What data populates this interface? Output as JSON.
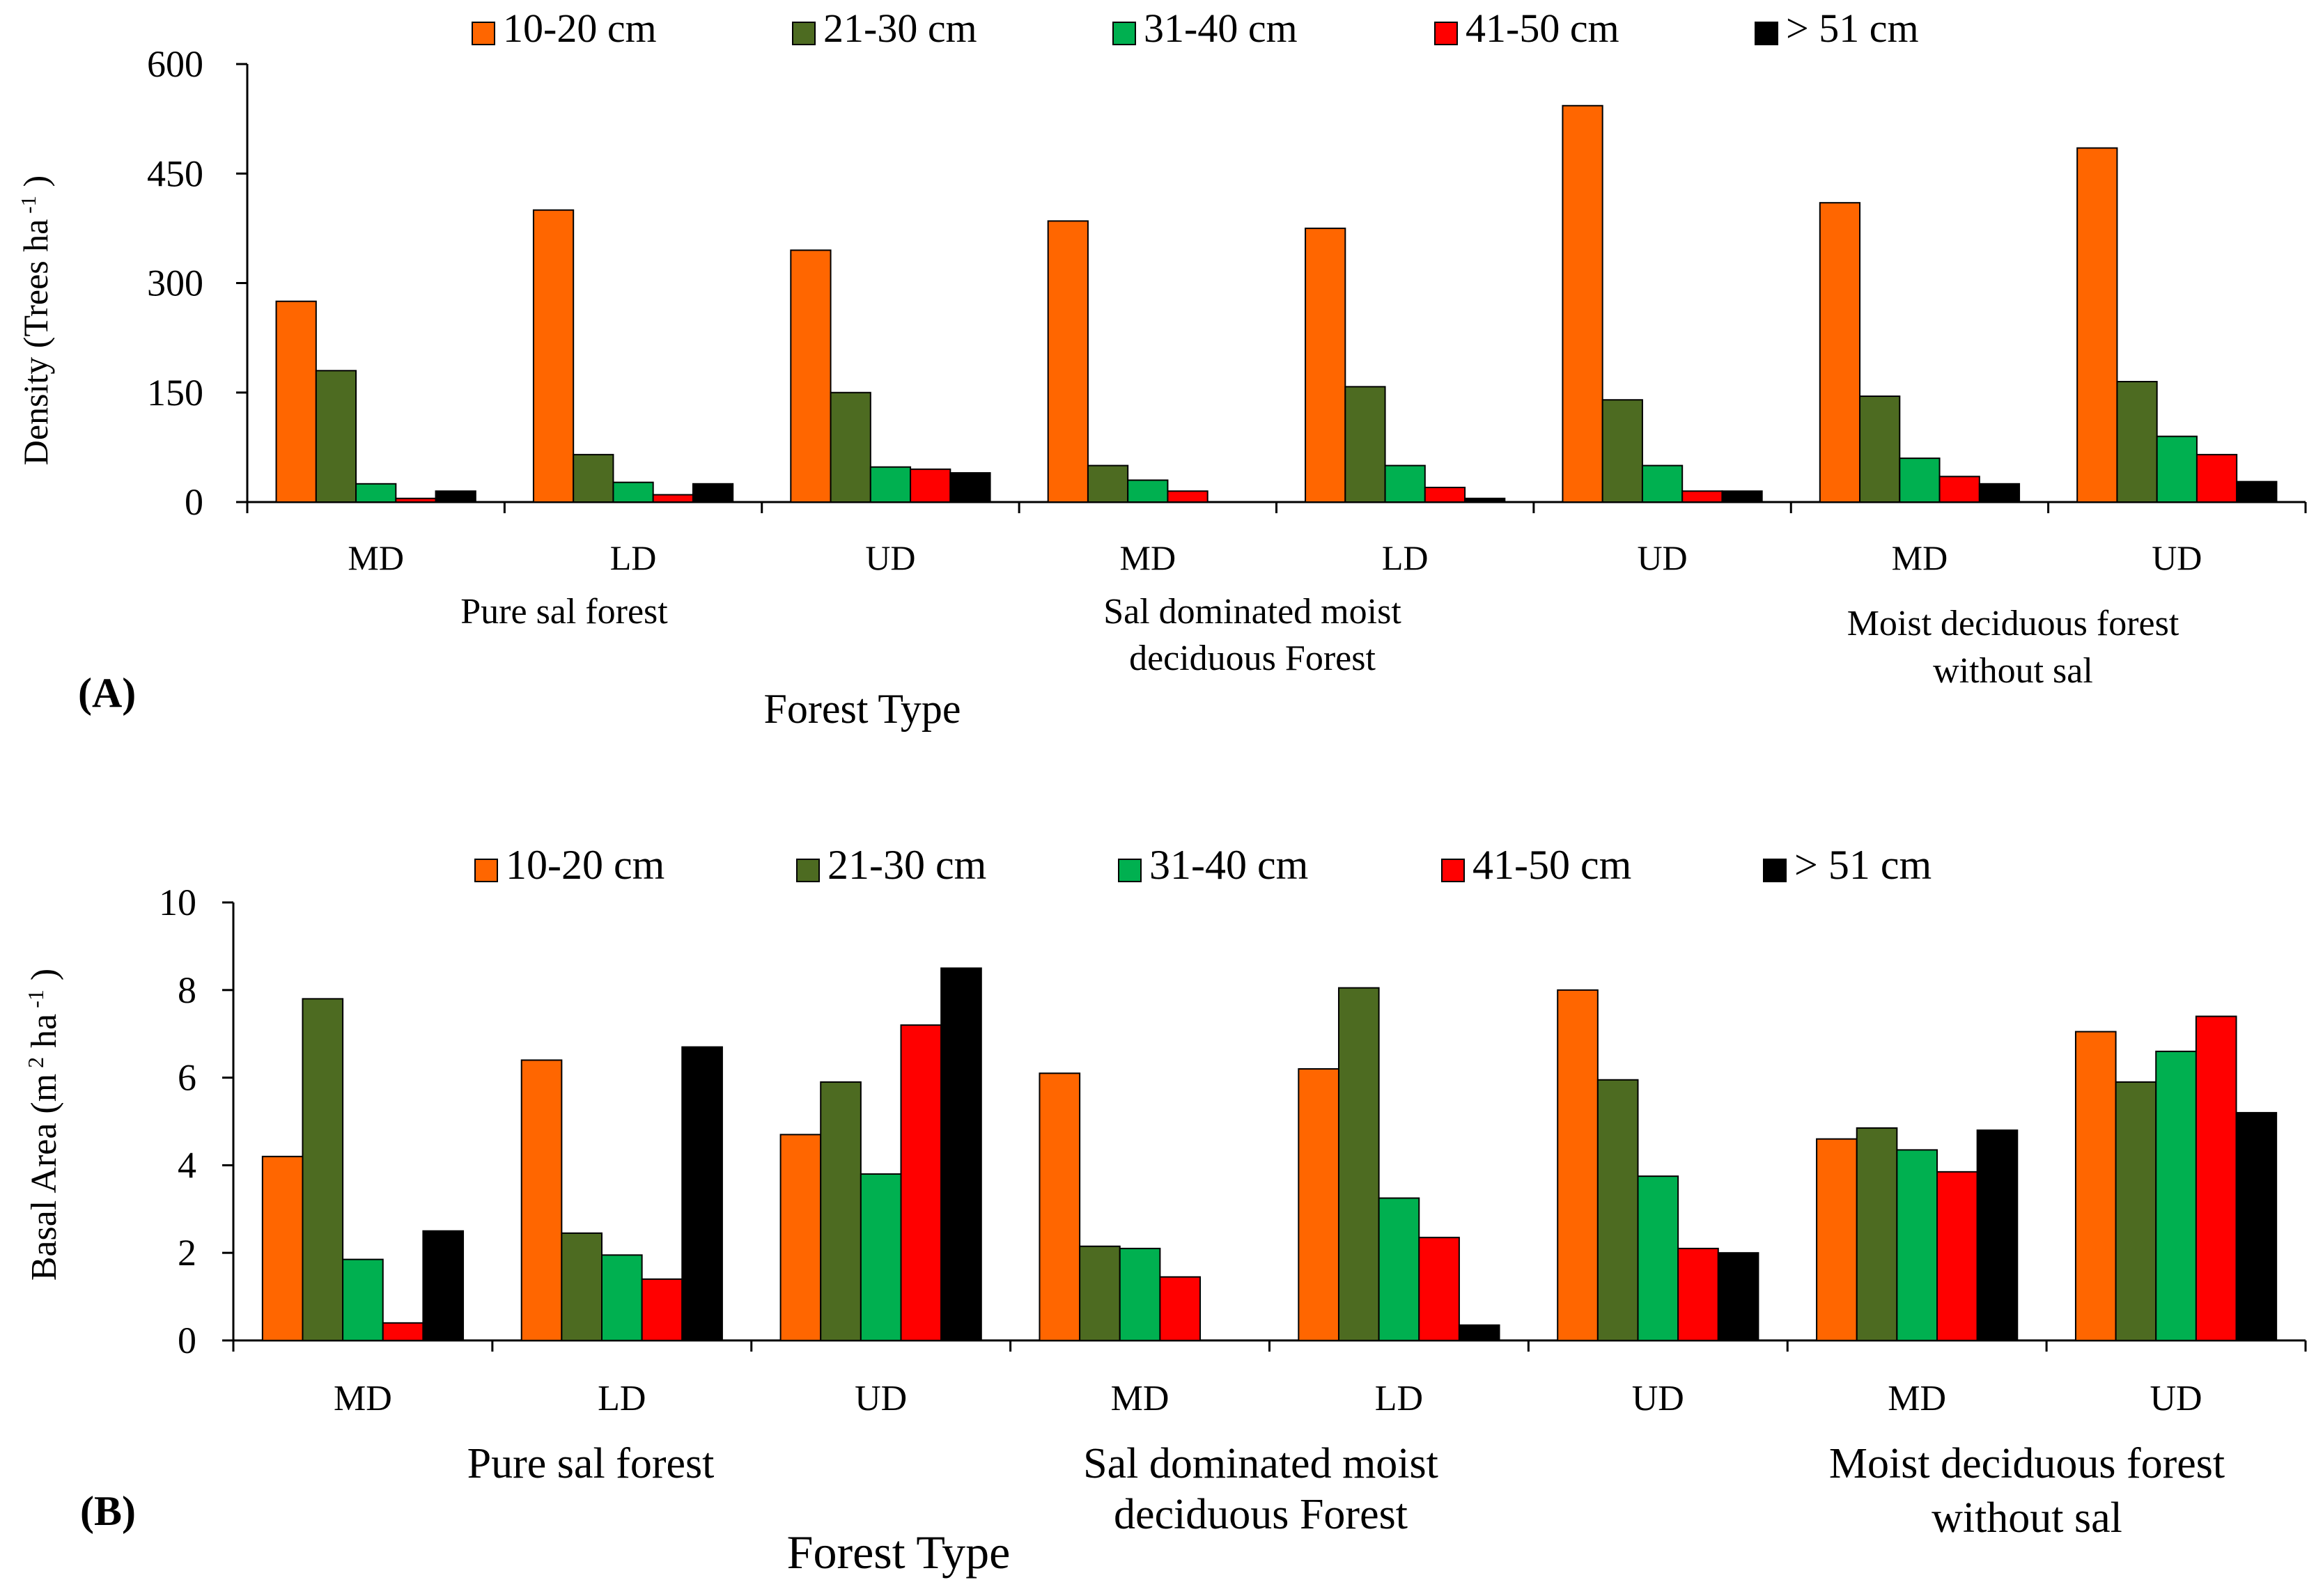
{
  "colors": {
    "s1": "#FF6600",
    "s2": "#4D6B21",
    "s3": "#00B050",
    "s4": "#FF0000",
    "s5": "#000000"
  },
  "chart_data": [
    {
      "type": "bar",
      "panel_label": "(A)",
      "ylabel": "Density (Trees ha",
      "ylabel_sup": "-1",
      "ylabel_close": ")",
      "xlabel": "Forest Type",
      "ylim": [
        0,
        600
      ],
      "yticks": [
        "0",
        "150",
        "300",
        "450",
        "600"
      ],
      "ytick_values": [
        0,
        150,
        300,
        450,
        600
      ],
      "categories": [
        "MD",
        "LD",
        "UD",
        "MD",
        "LD",
        "UD",
        "MD",
        "UD"
      ],
      "groups": [
        {
          "lines": [
            "Pure sal forest"
          ]
        },
        {
          "lines": [
            "Sal dominated moist",
            "deciduous Forest"
          ]
        },
        {
          "lines": [
            "Moist deciduous forest",
            "without sal"
          ]
        }
      ],
      "series": [
        {
          "name": "10-20 cm",
          "values": [
            275,
            400,
            345,
            385,
            375,
            543,
            410,
            485
          ]
        },
        {
          "name": "21-30 cm",
          "values": [
            180,
            65,
            150,
            50,
            158,
            140,
            145,
            165
          ]
        },
        {
          "name": "31-40 cm",
          "values": [
            25,
            27,
            48,
            30,
            50,
            50,
            60,
            90
          ]
        },
        {
          "name": "41-50 cm",
          "values": [
            5,
            10,
            45,
            15,
            20,
            15,
            35,
            65
          ]
        },
        {
          "name": "> 51 cm",
          "values": [
            15,
            25,
            40,
            0,
            5,
            15,
            25,
            28
          ]
        }
      ]
    },
    {
      "type": "bar",
      "panel_label": "(B)",
      "ylabel": "Basal Area (m",
      "ylabel_sup": "2",
      "ylabel_mid": " ha",
      "ylabel_sup2": "-1",
      "ylabel_close": ")",
      "xlabel": "Forest Type",
      "ylim": [
        0,
        10
      ],
      "yticks": [
        "0",
        "2",
        "4",
        "6",
        "8",
        "10"
      ],
      "ytick_values": [
        0,
        2,
        4,
        6,
        8,
        10
      ],
      "categories": [
        "MD",
        "LD",
        "UD",
        "MD",
        "LD",
        "UD",
        "MD",
        "UD"
      ],
      "groups": [
        {
          "lines": [
            "Pure sal forest"
          ]
        },
        {
          "lines": [
            "Sal dominated moist",
            "deciduous Forest"
          ]
        },
        {
          "lines": [
            "Moist deciduous forest",
            "without sal"
          ]
        }
      ],
      "series": [
        {
          "name": "10-20 cm",
          "values": [
            4.2,
            6.4,
            4.7,
            6.1,
            6.2,
            8.0,
            4.6,
            7.05
          ]
        },
        {
          "name": "21-30 cm",
          "values": [
            7.8,
            2.45,
            5.9,
            2.15,
            8.05,
            5.95,
            4.85,
            5.9
          ]
        },
        {
          "name": "31-40 cm",
          "values": [
            1.85,
            1.95,
            3.8,
            2.1,
            3.25,
            3.75,
            4.35,
            6.6
          ]
        },
        {
          "name": "41-50 cm",
          "values": [
            0.4,
            1.4,
            7.2,
            1.45,
            2.35,
            2.1,
            3.85,
            7.4
          ]
        },
        {
          "name": "> 51 cm",
          "values": [
            2.5,
            6.7,
            8.5,
            0,
            0.35,
            2.0,
            4.8,
            5.2
          ]
        }
      ]
    }
  ]
}
